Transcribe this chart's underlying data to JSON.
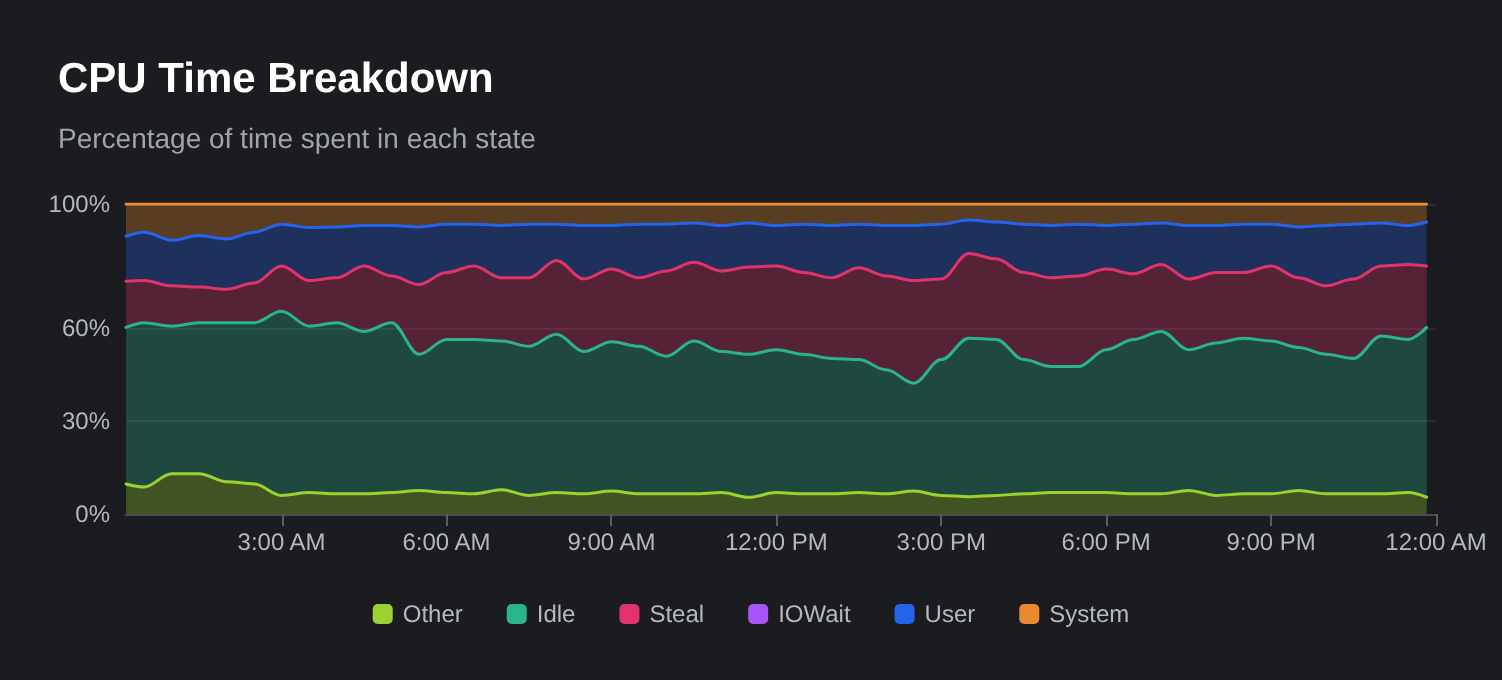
{
  "chart_data": {
    "type": "area",
    "title": "CPU Time Breakdown",
    "subtitle": "Percentage of time spent in each state",
    "stacked": true,
    "grid": "y",
    "legend": "bottom",
    "marker": "none",
    "x": [
      0.17,
      0.5,
      1,
      1.5,
      2,
      2.5,
      3,
      3.5,
      4,
      4.5,
      5,
      5.5,
      6,
      6.5,
      7,
      7.5,
      8,
      8.5,
      9,
      9.5,
      10,
      10.5,
      11,
      11.5,
      12,
      12.5,
      13,
      13.5,
      14,
      14.5,
      15,
      15.5,
      16,
      16.5,
      17,
      17.5,
      18,
      18.5,
      19,
      19.5,
      20,
      20.5,
      21,
      21.5,
      22,
      22.5,
      23,
      23.5,
      23.83
    ],
    "xlim": [
      0.17,
      24
    ],
    "xticks": [
      {
        "value": 3,
        "label": "3:00 AM"
      },
      {
        "value": 6,
        "label": "6:00 AM"
      },
      {
        "value": 9,
        "label": "9:00 AM"
      },
      {
        "value": 12,
        "label": "12:00 PM"
      },
      {
        "value": 15,
        "label": "3:00 PM"
      },
      {
        "value": 18,
        "label": "6:00 PM"
      },
      {
        "value": 21,
        "label": "9:00 PM"
      },
      {
        "value": 24,
        "label": "12:00 AM"
      }
    ],
    "ylim": [
      0,
      100
    ],
    "yticks": [
      {
        "value": 0,
        "label": "0%"
      },
      {
        "value": 30,
        "label": "30%"
      },
      {
        "value": 60,
        "label": "60%"
      },
      {
        "value": 100,
        "label": "100%"
      }
    ],
    "series": [
      {
        "name": "Other",
        "color": "#9bd22f",
        "values": [
          9.7,
          8.7,
          13.0,
          13.0,
          10.4,
          9.7,
          6.0,
          6.9,
          6.5,
          6.5,
          6.9,
          7.6,
          6.9,
          6.5,
          7.8,
          6.0,
          6.9,
          6.5,
          7.4,
          6.5,
          6.5,
          6.5,
          6.9,
          5.4,
          6.9,
          6.5,
          6.5,
          6.9,
          6.5,
          7.4,
          6.0,
          5.6,
          6.0,
          6.5,
          6.9,
          6.9,
          6.9,
          6.5,
          6.5,
          7.6,
          6.0,
          6.5,
          6.5,
          7.6,
          6.5,
          6.5,
          6.5,
          6.9,
          5.4
        ]
      },
      {
        "name": "Idle",
        "color": "#2bb38a",
        "values": [
          50.5,
          53.0,
          47.6,
          48.7,
          51.3,
          52.0,
          59.4,
          53.7,
          55.2,
          52.4,
          54.8,
          43.9,
          49.4,
          49.8,
          48.0,
          48.1,
          51.1,
          45.9,
          48.2,
          47.6,
          44.4,
          49.3,
          45.5,
          46.1,
          46.1,
          45.0,
          43.7,
          42.9,
          40.0,
          34.8,
          43.8,
          51.1,
          50.3,
          43.3,
          40.7,
          40.7,
          46.1,
          49.8,
          52.4,
          45.4,
          49.2,
          50.2,
          49.3,
          46.1,
          45.0,
          43.7,
          50.9,
          49.4,
          54.8
        ]
      },
      {
        "name": "Steal",
        "color": "#e0336b",
        "values": [
          14.9,
          13.6,
          13.0,
          11.5,
          10.8,
          12.8,
          14.6,
          14.7,
          14.5,
          21.1,
          15.1,
          22.5,
          21.6,
          23.7,
          20.4,
          22.1,
          23.8,
          23.4,
          23.4,
          22.1,
          27.5,
          25.4,
          26.0,
          28.2,
          27.0,
          26.4,
          26.0,
          29.6,
          30.3,
          33.1,
          26.0,
          27.3,
          26.0,
          28.1,
          28.6,
          29.2,
          26.0,
          21.2,
          21.6,
          22.8,
          22.7,
          21.2,
          24.2,
          22.5,
          22.1,
          25.6,
          22.6,
          24.2,
          19.8
        ]
      },
      {
        "name": "IOWait",
        "color": "#a855f7",
        "values": [
          null,
          null,
          null,
          null,
          null,
          null,
          null,
          null,
          null,
          null,
          null,
          null,
          null,
          null,
          null,
          null,
          null,
          null,
          null,
          null,
          null,
          null,
          null,
          null,
          null,
          null,
          null,
          null,
          null,
          null,
          null,
          null,
          null,
          null,
          null,
          null,
          null,
          null,
          null,
          null,
          null,
          null,
          null,
          null,
          null,
          null,
          null,
          null,
          null
        ]
      },
      {
        "name": "User",
        "color": "#2563eb",
        "values": [
          14.5,
          15.6,
          14.7,
          16.6,
          16.2,
          16.4,
          13.5,
          17.1,
          16.4,
          13.1,
          16.3,
          18.6,
          15.6,
          13.5,
          16.9,
          17.3,
          11.7,
          17.3,
          14.1,
          17.3,
          15.1,
          12.7,
          14.7,
          14.2,
          13.1,
          15.6,
          16.9,
          14.1,
          16.3,
          17.8,
          17.7,
          10.8,
          11.9,
          15.6,
          16.9,
          16.7,
          14.1,
          16.0,
          13.4,
          17.3,
          15.2,
          15.6,
          13.5,
          16.4,
          19.5,
          17.7,
          13.9,
          12.6,
          14.2
        ]
      },
      {
        "name": "System",
        "color": "#ea8a2e",
        "values": [
          10.4,
          9.1,
          11.7,
          10.2,
          11.3,
          9.1,
          6.5,
          7.6,
          7.4,
          6.9,
          6.9,
          7.4,
          6.5,
          6.5,
          6.9,
          6.5,
          6.5,
          6.9,
          6.9,
          6.5,
          6.5,
          6.1,
          6.9,
          6.1,
          6.9,
          6.5,
          6.9,
          6.5,
          6.9,
          6.9,
          6.5,
          5.2,
          5.8,
          6.5,
          6.9,
          6.5,
          6.9,
          6.5,
          6.1,
          6.9,
          6.9,
          6.5,
          6.5,
          7.4,
          6.9,
          6.5,
          6.1,
          6.9,
          5.8
        ]
      }
    ]
  }
}
